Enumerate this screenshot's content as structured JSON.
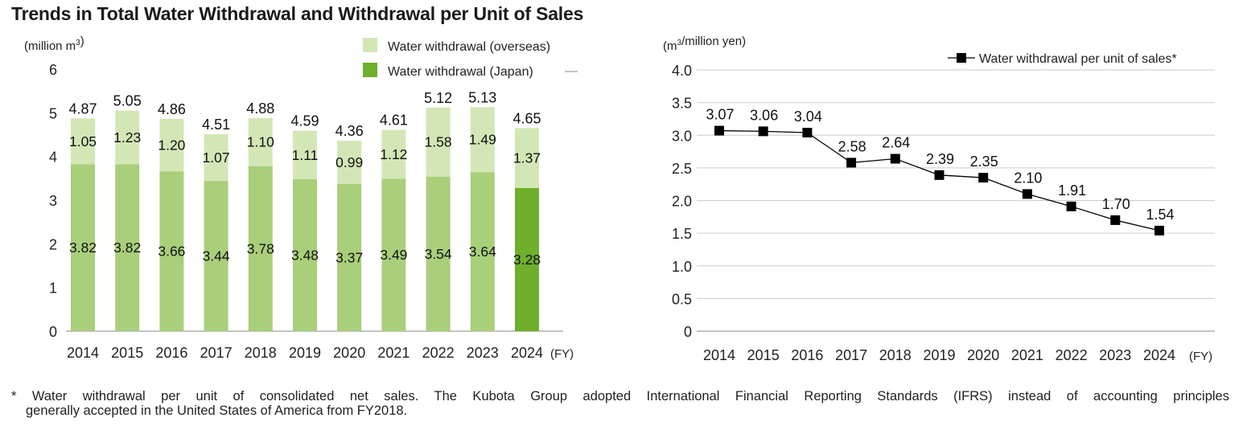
{
  "title": "Trends in Total Water Withdrawal and Withdrawal per Unit of Sales",
  "colors": {
    "overseas": "#a9cf7b",
    "japan": "#6faf2c",
    "line": "#000000",
    "grid": "#cccccc"
  },
  "chart_data": [
    {
      "type": "bar",
      "stacked": true,
      "categories": [
        "2014",
        "2015",
        "2016",
        "2017",
        "2018",
        "2019",
        "2020",
        "2021",
        "2022",
        "2023",
        "2024"
      ],
      "x_unit": "(FY)",
      "y_unit": "(million m³)",
      "ylim": [
        0,
        6
      ],
      "yticks": [
        "0",
        "1",
        "2",
        "3",
        "4",
        "5",
        "6"
      ],
      "grid": false,
      "legend": "top-right",
      "series": [
        {
          "name": "Water withdrawal (Japan)",
          "values": [
            3.82,
            3.82,
            3.66,
            3.44,
            3.78,
            3.48,
            3.37,
            3.49,
            3.54,
            3.64,
            3.28
          ]
        },
        {
          "name": "Water withdrawal (overseas)",
          "values": [
            1.05,
            1.23,
            1.2,
            1.07,
            1.1,
            1.11,
            0.99,
            1.12,
            1.58,
            1.49,
            1.37
          ]
        }
      ],
      "totals": [
        4.87,
        5.05,
        4.86,
        4.51,
        4.88,
        4.59,
        4.36,
        4.61,
        5.12,
        5.13,
        4.65
      ],
      "labels": {
        "japan": [
          "3.82",
          "3.82",
          "3.66",
          "3.44",
          "3.78",
          "3.48",
          "3.37",
          "3.49",
          "3.54",
          "3.64",
          "3.28"
        ],
        "overseas": [
          "1.05",
          "1.23",
          "1.20",
          "1.07",
          "1.10",
          "1.11",
          "0.99",
          "1.12",
          "1.58",
          "1.49",
          "1.37"
        ],
        "totals": [
          "4.87",
          "5.05",
          "4.86",
          "4.51",
          "4.88",
          "4.59",
          "4.36",
          "4.61",
          "5.12",
          "5.13",
          "4.65"
        ]
      }
    },
    {
      "type": "line",
      "categories": [
        "2014",
        "2015",
        "2016",
        "2017",
        "2018",
        "2019",
        "2020",
        "2021",
        "2022",
        "2023",
        "2024"
      ],
      "x_unit": "(FY)",
      "y_unit": "(m³/million yen)",
      "ylim": [
        0,
        4.0
      ],
      "yticks": [
        "0",
        "0.5",
        "1.0",
        "1.5",
        "2.0",
        "2.5",
        "3.0",
        "3.5",
        "4.0"
      ],
      "grid": true,
      "legend": "top-right",
      "series": [
        {
          "name": "Water withdrawal per unit of sales*",
          "values": [
            3.07,
            3.06,
            3.04,
            2.58,
            2.64,
            2.39,
            2.35,
            2.1,
            1.91,
            1.7,
            1.54
          ],
          "labels": [
            "3.07",
            "3.06",
            "3.04",
            "2.58",
            "2.64",
            "2.39",
            "2.35",
            "2.10",
            "1.91",
            "1.70",
            "1.54"
          ]
        }
      ]
    }
  ],
  "footnote": {
    "line1": "* Water withdrawal per unit of consolidated net sales. The Kubota Group adopted International Financial Reporting Standards (IFRS) instead of accounting principles",
    "line2": "generally accepted in the United States of America from FY2018."
  }
}
